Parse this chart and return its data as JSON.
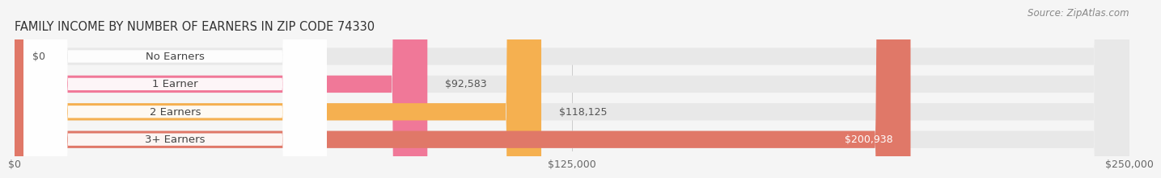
{
  "title": "FAMILY INCOME BY NUMBER OF EARNERS IN ZIP CODE 74330",
  "source": "Source: ZipAtlas.com",
  "categories": [
    "No Earners",
    "1 Earner",
    "2 Earners",
    "3+ Earners"
  ],
  "values": [
    0,
    92583,
    118125,
    200938
  ],
  "bar_colors": [
    "#a0a0e0",
    "#f07898",
    "#f5b050",
    "#e07868"
  ],
  "bar_bg_color": "#e8e8e8",
  "xlim": [
    0,
    250000
  ],
  "xticks": [
    0,
    125000,
    250000
  ],
  "xtick_labels": [
    "$0",
    "$125,000",
    "$250,000"
  ],
  "value_labels": [
    "$0",
    "$92,583",
    "$118,125",
    "$200,938"
  ],
  "bg_color": "#f5f5f5",
  "title_fontsize": 10.5,
  "source_fontsize": 8.5,
  "label_fontsize": 9.5,
  "value_fontsize": 9
}
